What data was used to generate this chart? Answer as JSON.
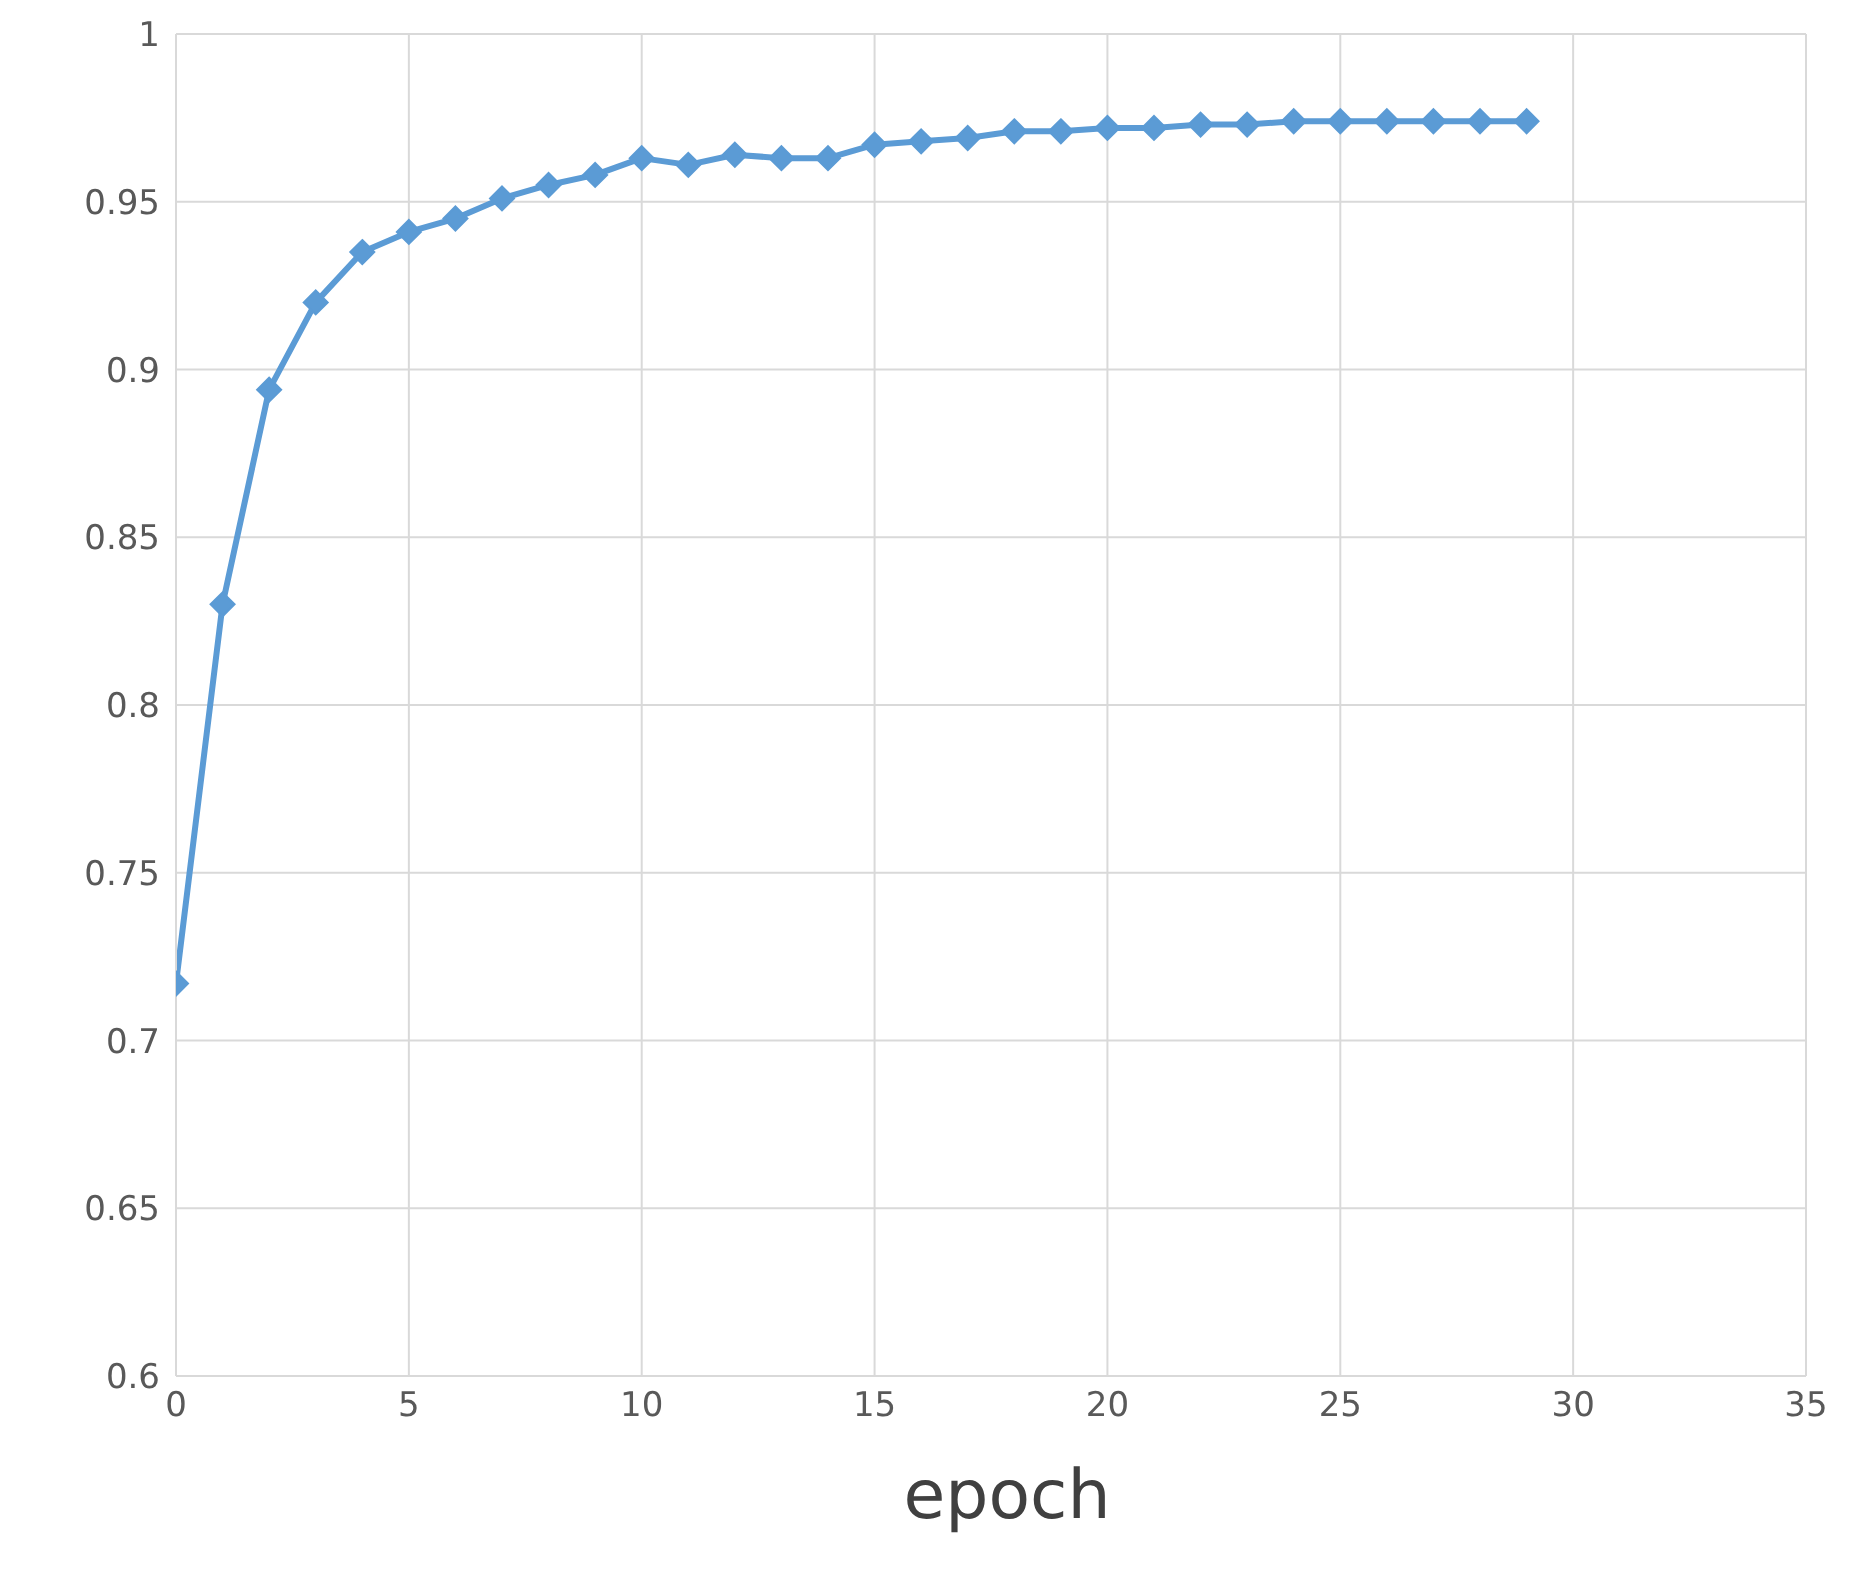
{
  "chart_data": {
    "type": "line",
    "xlabel": "epoch",
    "x": [
      0,
      1,
      2,
      3,
      4,
      5,
      6,
      7,
      8,
      9,
      10,
      11,
      12,
      13,
      14,
      15,
      16,
      17,
      18,
      19,
      20,
      21,
      22,
      23,
      24,
      25,
      26,
      27,
      28,
      29
    ],
    "series": [
      {
        "color": "#5b9bd5",
        "values": [
          0.717,
          0.83,
          0.894,
          0.92,
          0.935,
          0.941,
          0.945,
          0.951,
          0.955,
          0.958,
          0.963,
          0.961,
          0.964,
          0.963,
          0.963,
          0.967,
          0.968,
          0.969,
          0.971,
          0.971,
          0.972,
          0.972,
          0.973,
          0.973,
          0.974,
          0.974,
          0.974,
          0.974,
          0.974,
          0.974
        ]
      }
    ],
    "xlim": [
      0,
      35
    ],
    "xticks": [
      0,
      5,
      10,
      15,
      20,
      25,
      30,
      35
    ],
    "ylim": [
      0.6,
      1
    ],
    "yticks": [
      0.6,
      0.65,
      0.7,
      0.75,
      0.8,
      0.85,
      0.9,
      0.95,
      1
    ],
    "grid": true,
    "marker": "diamond",
    "line_style": "solid"
  }
}
